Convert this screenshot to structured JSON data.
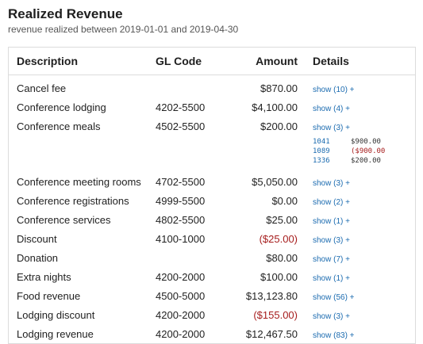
{
  "header": {
    "title": "Realized Revenue",
    "subtitle": "revenue realized between 2019-01-01 and 2019-04-30"
  },
  "table": {
    "columns": [
      "Description",
      "GL Code",
      "Amount",
      "Details"
    ],
    "rows": [
      {
        "description": "Cancel fee",
        "gl_code": "",
        "amount": "$870.00",
        "details": "show (10) +"
      },
      {
        "description": "Conference lodging",
        "gl_code": "4202-5500",
        "amount": "$4,100.00",
        "details": "show (4) +"
      },
      {
        "description": "Conference meals",
        "gl_code": "4502-5500",
        "amount": "$200.00",
        "details": "show (3) +"
      },
      {
        "description": "Conference meeting rooms",
        "gl_code": "4702-5500",
        "amount": "$5,050.00",
        "details": "show (3) +"
      },
      {
        "description": "Conference registrations",
        "gl_code": "4999-5500",
        "amount": "$0.00",
        "details": "show (2) +"
      },
      {
        "description": "Conference services",
        "gl_code": "4802-5500",
        "amount": "$25.00",
        "details": "show (1) +"
      },
      {
        "description": "Discount",
        "gl_code": "4100-1000",
        "amount": "($25.00)",
        "details": "show (3) +"
      },
      {
        "description": "Donation",
        "gl_code": "",
        "amount": "$80.00",
        "details": "show (7) +"
      },
      {
        "description": "Extra nights",
        "gl_code": "4200-2000",
        "amount": "$100.00",
        "details": "show (1) +"
      },
      {
        "description": "Food revenue",
        "gl_code": "4500-5000",
        "amount": "$13,123.80",
        "details": "show (56) +"
      },
      {
        "description": "Lodging discount",
        "gl_code": "4200-2000",
        "amount": "($155.00)",
        "details": "show (3) +"
      },
      {
        "description": "Lodging revenue",
        "gl_code": "4200-2000",
        "amount": "$12,467.50",
        "details": "show (83) +"
      }
    ],
    "expanded_details": [
      {
        "id": "1041",
        "amount": "$900.00"
      },
      {
        "id": "1089",
        "amount": "($900.00"
      },
      {
        "id": "1336",
        "amount": "$200.00"
      }
    ]
  },
  "colors": {
    "negative": "#a61d1d",
    "link": "#1b6bb0"
  }
}
